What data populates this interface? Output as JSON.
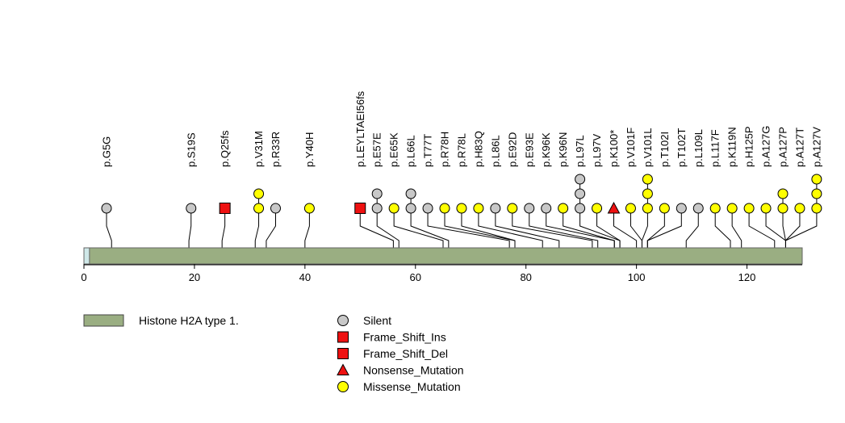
{
  "chart_data": {
    "type": "lollipop",
    "x_axis": {
      "range": [
        0,
        130
      ],
      "ticks": [
        0,
        20,
        40,
        60,
        80,
        100,
        120
      ]
    },
    "domains": [
      {
        "name": "Histone H2A type 1.",
        "start": 1,
        "end": 130,
        "color": "#9aae82"
      }
    ],
    "legend": {
      "domain_label": "Histone H2A type 1.",
      "items": [
        {
          "label": "Silent",
          "shape": "circle",
          "color": "#c8c8c8"
        },
        {
          "label": "Frame_Shift_Ins",
          "shape": "square",
          "color": "#ee1111"
        },
        {
          "label": "Frame_Shift_Del",
          "shape": "square",
          "color": "#ee1111"
        },
        {
          "label": "Nonsense_Mutation",
          "shape": "triangle",
          "color": "#ee1111"
        },
        {
          "label": "Missense_Mutation",
          "shape": "circle",
          "color": "#ffff00"
        }
      ]
    },
    "mutations": [
      {
        "label": "p.G5G",
        "position": 5,
        "types": [
          "Silent"
        ]
      },
      {
        "label": "p.S19S",
        "position": 19,
        "types": [
          "Silent"
        ]
      },
      {
        "label": "p.Q25fs",
        "position": 25,
        "types": [
          "Frame_Shift"
        ]
      },
      {
        "label": "p.V31M",
        "position": 31,
        "types": [
          "Missense_Mutation",
          "Missense_Mutation"
        ]
      },
      {
        "label": "p.R33R",
        "position": 33,
        "types": [
          "Silent"
        ]
      },
      {
        "label": "p.Y40H",
        "position": 40,
        "types": [
          "Missense_Mutation"
        ]
      },
      {
        "label": "p.LEYLTAEI56fs",
        "position": 56,
        "types": [
          "Frame_Shift"
        ]
      },
      {
        "label": "p.E57E",
        "position": 57,
        "types": [
          "Silent",
          "Silent"
        ]
      },
      {
        "label": "p.E65K",
        "position": 65,
        "types": [
          "Missense_Mutation"
        ]
      },
      {
        "label": "p.L66L",
        "position": 66,
        "types": [
          "Silent",
          "Silent"
        ]
      },
      {
        "label": "p.T77T",
        "position": 77,
        "types": [
          "Silent"
        ]
      },
      {
        "label": "p.R78H",
        "position": 78,
        "types": [
          "Missense_Mutation"
        ]
      },
      {
        "label": "p.R78L",
        "position": 78,
        "types": [
          "Missense_Mutation"
        ]
      },
      {
        "label": "p.H83Q",
        "position": 83,
        "types": [
          "Missense_Mutation"
        ]
      },
      {
        "label": "p.L86L",
        "position": 86,
        "types": [
          "Silent"
        ]
      },
      {
        "label": "p.E92D",
        "position": 92,
        "types": [
          "Missense_Mutation"
        ]
      },
      {
        "label": "p.E93E",
        "position": 93,
        "types": [
          "Silent"
        ]
      },
      {
        "label": "p.K96K",
        "position": 96,
        "types": [
          "Silent"
        ]
      },
      {
        "label": "p.K96N",
        "position": 96,
        "types": [
          "Missense_Mutation"
        ]
      },
      {
        "label": "p.L97L",
        "position": 97,
        "types": [
          "Silent",
          "Silent",
          "Silent"
        ]
      },
      {
        "label": "p.L97V",
        "position": 97,
        "types": [
          "Missense_Mutation"
        ]
      },
      {
        "label": "p.K100*",
        "position": 100,
        "types": [
          "Nonsense_Mutation"
        ]
      },
      {
        "label": "p.V101F",
        "position": 101,
        "types": [
          "Missense_Mutation"
        ]
      },
      {
        "label": "p.V101L",
        "position": 101,
        "types": [
          "Missense_Mutation",
          "Missense_Mutation",
          "Missense_Mutation"
        ]
      },
      {
        "label": "p.T102I",
        "position": 102,
        "types": [
          "Missense_Mutation"
        ]
      },
      {
        "label": "p.T102T",
        "position": 102,
        "types": [
          "Silent"
        ]
      },
      {
        "label": "p.L109L",
        "position": 109,
        "types": [
          "Silent"
        ]
      },
      {
        "label": "p.L117F",
        "position": 117,
        "types": [
          "Missense_Mutation"
        ]
      },
      {
        "label": "p.K119N",
        "position": 119,
        "types": [
          "Missense_Mutation"
        ]
      },
      {
        "label": "p.H125P",
        "position": 125,
        "types": [
          "Missense_Mutation"
        ]
      },
      {
        "label": "p.A127G",
        "position": 127,
        "types": [
          "Missense_Mutation"
        ]
      },
      {
        "label": "p.A127P",
        "position": 127,
        "types": [
          "Missense_Mutation",
          "Missense_Mutation"
        ]
      },
      {
        "label": "p.A127T",
        "position": 127,
        "types": [
          "Missense_Mutation"
        ]
      },
      {
        "label": "p.A127V",
        "position": 127,
        "types": [
          "Missense_Mutation",
          "Missense_Mutation",
          "Missense_Mutation"
        ]
      }
    ]
  }
}
